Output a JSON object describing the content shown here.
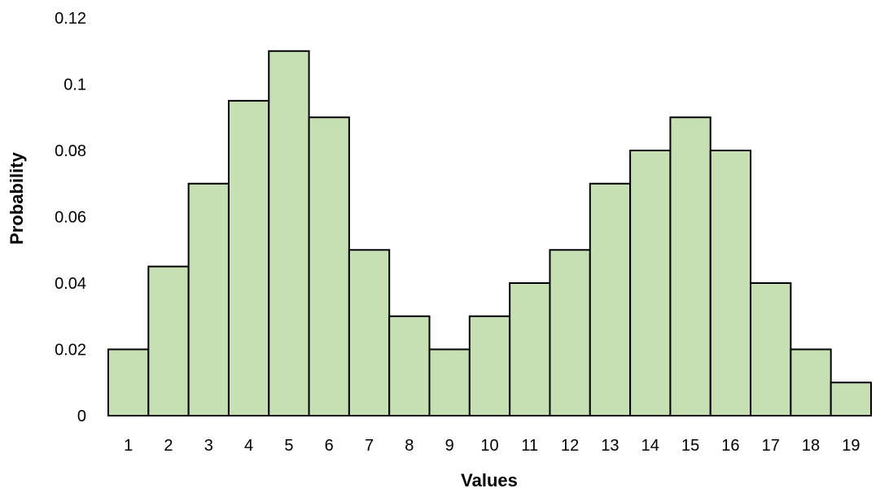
{
  "chart_data": {
    "type": "bar",
    "title": "",
    "xlabel": "Values",
    "ylabel": "Probability",
    "ylim": [
      0,
      0.12
    ],
    "yticks": [
      "0",
      "0.02",
      "0.04",
      "0.06",
      "0.08",
      "0.1",
      "0.12"
    ],
    "grid": false,
    "legend": "none",
    "categories": [
      "1",
      "2",
      "3",
      "4",
      "5",
      "6",
      "7",
      "8",
      "9",
      "10",
      "11",
      "12",
      "13",
      "14",
      "15",
      "16",
      "17",
      "18",
      "19"
    ],
    "values": [
      0.02,
      0.045,
      0.07,
      0.095,
      0.11,
      0.09,
      0.05,
      0.03,
      0.02,
      0.03,
      0.04,
      0.05,
      0.07,
      0.08,
      0.09,
      0.08,
      0.04,
      0.02,
      0.01
    ],
    "colors": {
      "bar_fill": "#c6e0b4",
      "bar_stroke": "#000000",
      "axis": "#000000"
    }
  }
}
